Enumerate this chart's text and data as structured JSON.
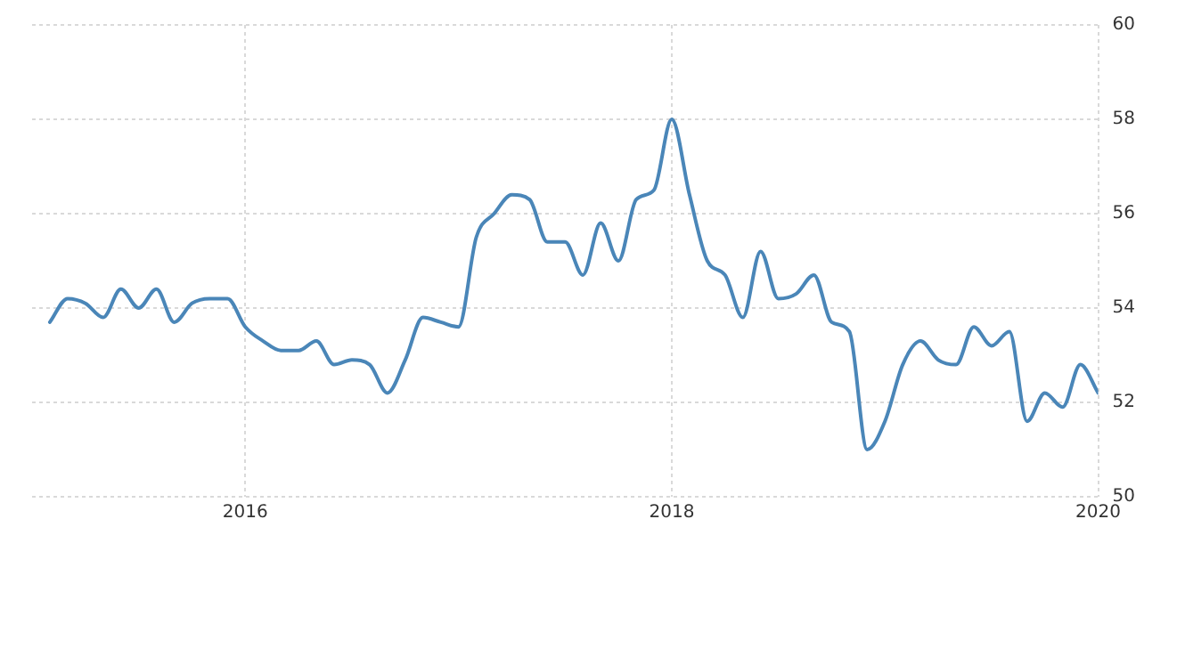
{
  "chart_data": {
    "type": "line",
    "x": [
      "2015-02",
      "2015-03",
      "2015-04",
      "2015-05",
      "2015-06",
      "2015-07",
      "2015-08",
      "2015-09",
      "2015-10",
      "2015-11",
      "2015-12",
      "2016-01",
      "2016-02",
      "2016-03",
      "2016-04",
      "2016-05",
      "2016-06",
      "2016-07",
      "2016-08",
      "2016-09",
      "2016-10",
      "2016-11",
      "2016-12",
      "2017-01",
      "2017-02",
      "2017-03",
      "2017-04",
      "2017-05",
      "2017-06",
      "2017-07",
      "2017-08",
      "2017-09",
      "2017-10",
      "2017-11",
      "2017-12",
      "2018-01",
      "2018-02",
      "2018-03",
      "2018-04",
      "2018-05",
      "2018-06",
      "2018-07",
      "2018-08",
      "2018-09",
      "2018-10",
      "2018-11",
      "2018-12",
      "2019-01",
      "2019-02",
      "2019-03",
      "2019-04",
      "2019-05",
      "2019-06",
      "2019-07",
      "2019-08",
      "2019-09",
      "2019-10",
      "2019-11",
      "2019-12",
      "2020-01"
    ],
    "series": [
      {
        "color": "#4a86b8",
        "values": [
          53.7,
          54.2,
          54.1,
          53.8,
          54.4,
          54.0,
          54.4,
          53.7,
          54.1,
          54.2,
          54.2,
          53.6,
          53.3,
          53.1,
          53.1,
          53.3,
          52.8,
          52.9,
          52.8,
          52.2,
          52.9,
          53.8,
          53.7,
          53.6,
          55.5,
          56.0,
          56.4,
          56.3,
          55.4,
          55.4,
          54.7,
          55.8,
          55.0,
          56.3,
          56.5,
          58.0,
          56.4,
          55.0,
          54.7,
          53.8,
          55.2,
          54.2,
          54.3,
          54.7,
          53.7,
          53.5,
          51.0,
          51.6,
          52.8,
          53.3,
          52.9,
          52.8,
          53.6,
          53.2,
          53.5,
          51.6,
          52.2,
          51.9,
          52.8,
          52.2
        ]
      }
    ],
    "xlim": [
      "2015-01",
      "2020-01"
    ],
    "xticks": [
      "2016",
      "2018",
      "2020"
    ],
    "ylim": [
      50,
      60
    ],
    "yticks": [
      50,
      52,
      54,
      56,
      58,
      60
    ],
    "grid": true,
    "legend": false,
    "marker": "none",
    "line_style": "solid"
  }
}
